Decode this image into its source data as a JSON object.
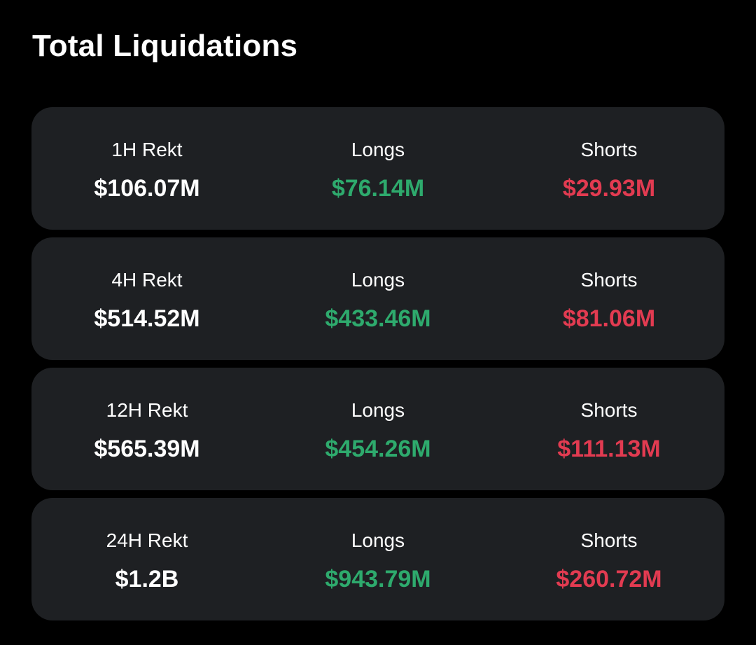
{
  "title": "Total Liquidations",
  "colors": {
    "background": "#000000",
    "card": "#1e2023",
    "total": "#ffffff",
    "long": "#2eaa6d",
    "short": "#e23b51"
  },
  "rows": [
    {
      "period_label": "1H Rekt",
      "total": "$106.07M",
      "longs_label": "Longs",
      "longs": "$76.14M",
      "shorts_label": "Shorts",
      "shorts": "$29.93M"
    },
    {
      "period_label": "4H Rekt",
      "total": "$514.52M",
      "longs_label": "Longs",
      "longs": "$433.46M",
      "shorts_label": "Shorts",
      "shorts": "$81.06M"
    },
    {
      "period_label": "12H Rekt",
      "total": "$565.39M",
      "longs_label": "Longs",
      "longs": "$454.26M",
      "shorts_label": "Shorts",
      "shorts": "$111.13M"
    },
    {
      "period_label": "24H Rekt",
      "total": "$1.2B",
      "longs_label": "Longs",
      "longs": "$943.79M",
      "shorts_label": "Shorts",
      "shorts": "$260.72M"
    }
  ]
}
